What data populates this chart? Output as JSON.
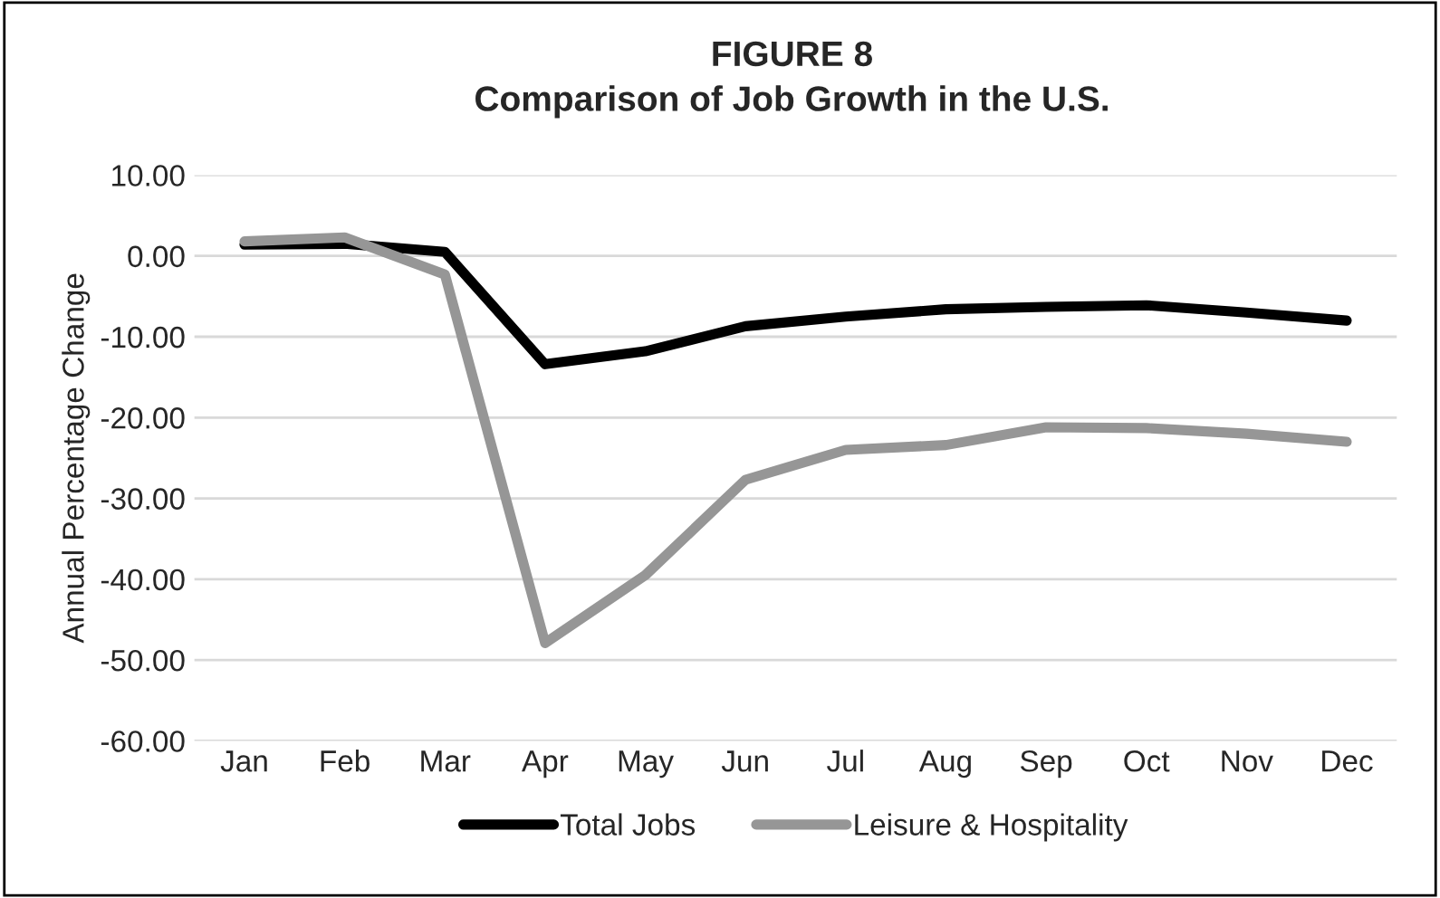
{
  "chart_data": {
    "type": "line",
    "title": "FIGURE 8",
    "subtitle": "Comparison of Job Growth in the U.S.",
    "ylabel": "Annual Percentage Change",
    "categories": [
      "Jan",
      "Feb",
      "Mar",
      "Apr",
      "May",
      "Jun",
      "Jul",
      "Aug",
      "Sep",
      "Oct",
      "Nov",
      "Dec"
    ],
    "series": [
      {
        "name": "Total Jobs",
        "color": "#000000",
        "values": [
          1.4,
          1.5,
          0.5,
          -13.4,
          -11.8,
          -8.7,
          -7.5,
          -6.6,
          -6.3,
          -6.1,
          -7.0,
          -8.0
        ]
      },
      {
        "name": "Leisure & Hospitality",
        "color": "#969696",
        "values": [
          1.8,
          2.3,
          -2.3,
          -47.9,
          -39.5,
          -27.7,
          -24.0,
          -23.4,
          -21.2,
          -21.3,
          -22.0,
          -23.0
        ]
      }
    ],
    "ylim": [
      -60,
      10
    ],
    "yticks": [
      {
        "value": 10,
        "label": "10.00"
      },
      {
        "value": 0,
        "label": "0.00"
      },
      {
        "value": -10,
        "label": "-10.00"
      },
      {
        "value": -20,
        "label": "-20.00"
      },
      {
        "value": -30,
        "label": "-30.00"
      },
      {
        "value": -40,
        "label": "-40.00"
      },
      {
        "value": -50,
        "label": "-50.00"
      },
      {
        "value": -60,
        "label": "-60.00"
      }
    ],
    "grid": "y",
    "legend": "bottom",
    "marker": "none",
    "line_style": "solid"
  }
}
